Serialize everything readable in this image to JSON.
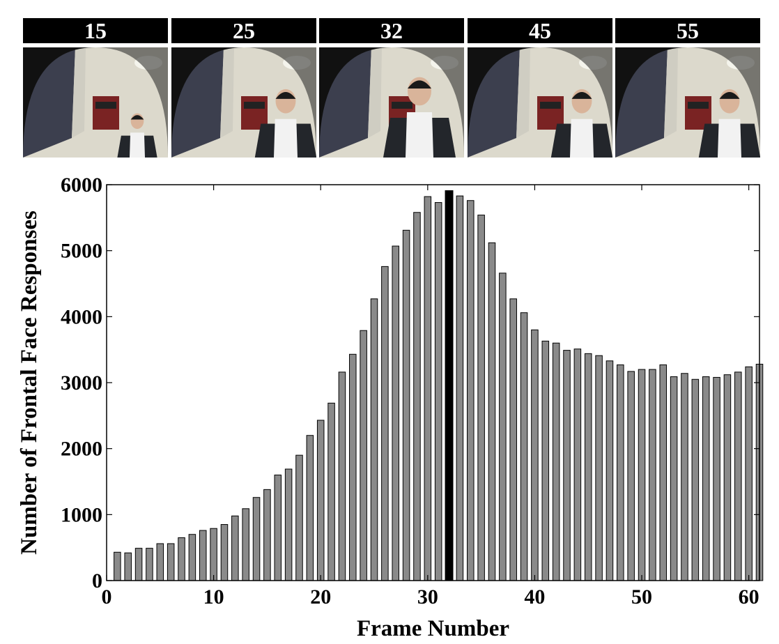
{
  "frames": [
    {
      "label": "15",
      "person_scale": 0.55
    },
    {
      "label": "25",
      "person_scale": 0.85
    },
    {
      "label": "32",
      "person_scale": 1.0
    },
    {
      "label": "45",
      "person_scale": 0.85
    },
    {
      "label": "55",
      "person_scale": 0.85
    }
  ],
  "chart_data": {
    "type": "bar",
    "xlabel": "Frame Number",
    "ylabel": "Number of Frontal Face Responses",
    "xlim": [
      0,
      61
    ],
    "ylim": [
      0,
      6000
    ],
    "xticks": [
      0,
      10,
      20,
      30,
      40,
      50,
      60
    ],
    "yticks": [
      0,
      1000,
      2000,
      3000,
      4000,
      5000,
      6000
    ],
    "highlight_x": 32,
    "colors": {
      "bar": "#8a8a8a",
      "highlight": "#000000",
      "edge": "#000000"
    },
    "x": [
      1,
      2,
      3,
      4,
      5,
      6,
      7,
      8,
      9,
      10,
      11,
      12,
      13,
      14,
      15,
      16,
      17,
      18,
      19,
      20,
      21,
      22,
      23,
      24,
      25,
      26,
      27,
      28,
      29,
      30,
      31,
      32,
      33,
      34,
      35,
      36,
      37,
      38,
      39,
      40,
      41,
      42,
      43,
      44,
      45,
      46,
      47,
      48,
      49,
      50,
      51,
      52,
      53,
      54,
      55,
      56,
      57,
      58,
      59,
      60,
      61
    ],
    "values": [
      430,
      420,
      490,
      490,
      560,
      560,
      650,
      700,
      760,
      790,
      850,
      980,
      1090,
      1260,
      1380,
      1600,
      1690,
      1900,
      2200,
      2430,
      2690,
      3160,
      3430,
      3790,
      4270,
      4760,
      5070,
      5310,
      5580,
      5820,
      5730,
      5910,
      5830,
      5760,
      5540,
      5120,
      4660,
      4270,
      4060,
      3800,
      3630,
      3600,
      3490,
      3510,
      3440,
      3410,
      3330,
      3270,
      3170,
      3200,
      3200,
      3270,
      3090,
      3140,
      3050,
      3090,
      3080,
      3120,
      3160,
      3240,
      3280
    ]
  }
}
